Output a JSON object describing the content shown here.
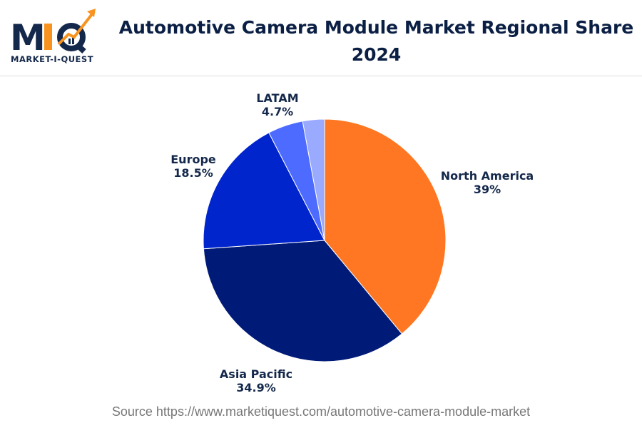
{
  "logo": {
    "text": "MIQ",
    "subtitle": "MARKET-I-QUEST"
  },
  "title": "Automotive Camera Module Market Regional Share 2024",
  "chart_data": {
    "type": "pie",
    "title": "Automotive Camera Module Market Regional Share 2024",
    "categories": [
      "North America",
      "Asia Pacific",
      "Europe",
      "LATAM",
      ""
    ],
    "values": [
      39,
      34.9,
      18.5,
      4.7,
      2.9
    ],
    "labels": [
      "39%",
      "34.9%",
      "18.5%",
      "4.7%",
      ""
    ],
    "colors": [
      "#FF7722",
      "#001A78",
      "#0025CC",
      "#4D6BFF",
      "#99AAFF"
    ],
    "start_angle": "12 o'clock",
    "direction": "clockwise"
  },
  "source": "Source https://www.marketiquest.com/automotive-camera-module-market"
}
